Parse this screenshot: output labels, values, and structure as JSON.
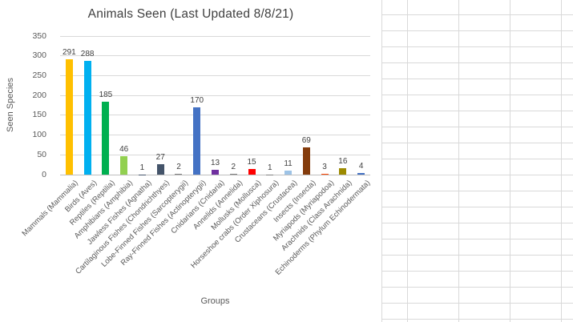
{
  "chart_data": {
    "type": "bar",
    "title": "Animals Seen (Last Updated 8/8/21)",
    "xlabel": "Groups",
    "ylabel": "Seen Species",
    "ylim": [
      0,
      350
    ],
    "ytick_step": 50,
    "grid": true,
    "legend": false,
    "data_labels": true,
    "categories": [
      "Mammals (Mammalia)",
      "Birds (Aves)",
      "Reptiles (Reptilia)",
      "Amphibians (Amphibia)",
      "Jawless Fishes (Agnatha)",
      "Cartilaginous Fishes (Chondrichthyes)",
      "Lobe-Finned Fishes (Sarcopterygii)",
      "Ray-Finned Fishes (Actinopterygii)",
      "Cnidarians (Cnidaria)",
      "Annelids (Annelida)",
      "Mollusks (Mollusca)",
      "Horseshoe crabs (Order Xiphosura)",
      "Crustaceans (Crustacea)",
      "Insects (Insecta)",
      "Myriapods (Myriapodoa)",
      "Arachnids (Class Arachnida)",
      "Echinoderms (Phylum Echinodermata)"
    ],
    "values": [
      291,
      288,
      185,
      46,
      1,
      27,
      2,
      170,
      13,
      2,
      15,
      1,
      11,
      69,
      3,
      16,
      4
    ],
    "bar_colors": [
      "#FFC000",
      "#00B0F0",
      "#00B050",
      "#92D050",
      "#44546A",
      "#44546A",
      "#7F7F7F",
      "#4472C4",
      "#7030A0",
      "#7F7F7F",
      "#FF0000",
      "#7F7F7F",
      "#9DC3E6",
      "#843C0C",
      "#FF4500",
      "#9C8A00",
      "#4472C4"
    ]
  },
  "colors": {
    "chart_gridline": "#D9D9D9",
    "axis_line": "#BFBFBF",
    "title_text": "#3F3F3F",
    "axis_text": "#595959",
    "value_label_text": "#404040",
    "spreadsheet_line": "#D9D9D9",
    "background": "#FFFFFF"
  }
}
